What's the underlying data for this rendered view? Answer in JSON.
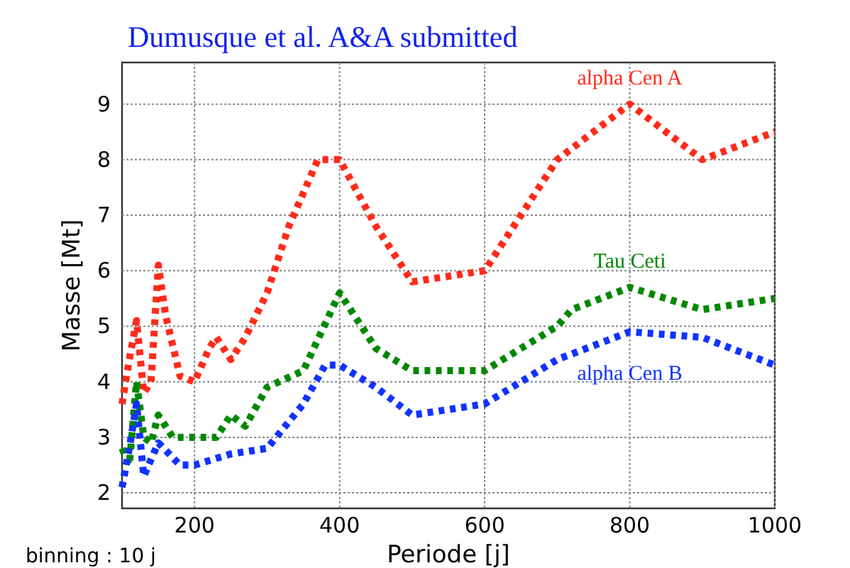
{
  "chart_data": {
    "type": "line",
    "title": "Dumusque et al. A&A submitted",
    "xlabel": "Periode [j]",
    "ylabel": "Masse [Mt]",
    "annotations": [
      "binning : 10 j"
    ],
    "xlim": [
      100,
      1000
    ],
    "xticks": [
      200,
      400,
      600,
      800,
      1000
    ],
    "ylim": [
      1.72,
      9.75
    ],
    "yticks": [
      2,
      3,
      4,
      5,
      6,
      7,
      8,
      9
    ],
    "grid": true,
    "line_style": "dotted",
    "marker": "none",
    "series": [
      {
        "name": "alpha Cen A",
        "color": "#ff2a1a",
        "x": [
          100,
          110,
          120,
          130,
          140,
          150,
          160,
          180,
          200,
          220,
          230,
          250,
          270,
          300,
          330,
          370,
          400,
          450,
          500,
          600,
          700,
          750,
          800,
          900,
          1000
        ],
        "values": [
          3.6,
          4.4,
          5.1,
          3.8,
          4.0,
          6.1,
          5.2,
          4.1,
          4.0,
          4.6,
          4.8,
          4.4,
          4.8,
          5.6,
          6.8,
          8.0,
          8.0,
          6.8,
          5.8,
          6.0,
          8.0,
          8.5,
          9.0,
          8.0,
          8.5
        ]
      },
      {
        "name": "Tau Ceti",
        "color": "#008800",
        "x": [
          100,
          110,
          120,
          130,
          140,
          150,
          170,
          200,
          230,
          250,
          270,
          300,
          350,
          400,
          450,
          500,
          600,
          700,
          720,
          800,
          900,
          1000
        ],
        "values": [
          2.8,
          2.5,
          4.0,
          3.0,
          2.9,
          3.4,
          3.0,
          3.0,
          3.0,
          3.4,
          3.2,
          3.9,
          4.2,
          5.6,
          4.6,
          4.2,
          4.2,
          5.0,
          5.3,
          5.7,
          5.3,
          5.5
        ]
      },
      {
        "name": "alpha Cen B",
        "color": "#1133ff",
        "x": [
          100,
          110,
          120,
          130,
          140,
          150,
          180,
          200,
          250,
          300,
          350,
          380,
          400,
          450,
          500,
          600,
          700,
          800,
          900,
          1000
        ],
        "values": [
          2.1,
          2.8,
          3.6,
          2.3,
          2.6,
          2.9,
          2.5,
          2.5,
          2.7,
          2.8,
          3.6,
          4.3,
          4.3,
          3.9,
          3.4,
          3.6,
          4.4,
          4.9,
          4.8,
          4.3
        ]
      }
    ]
  }
}
